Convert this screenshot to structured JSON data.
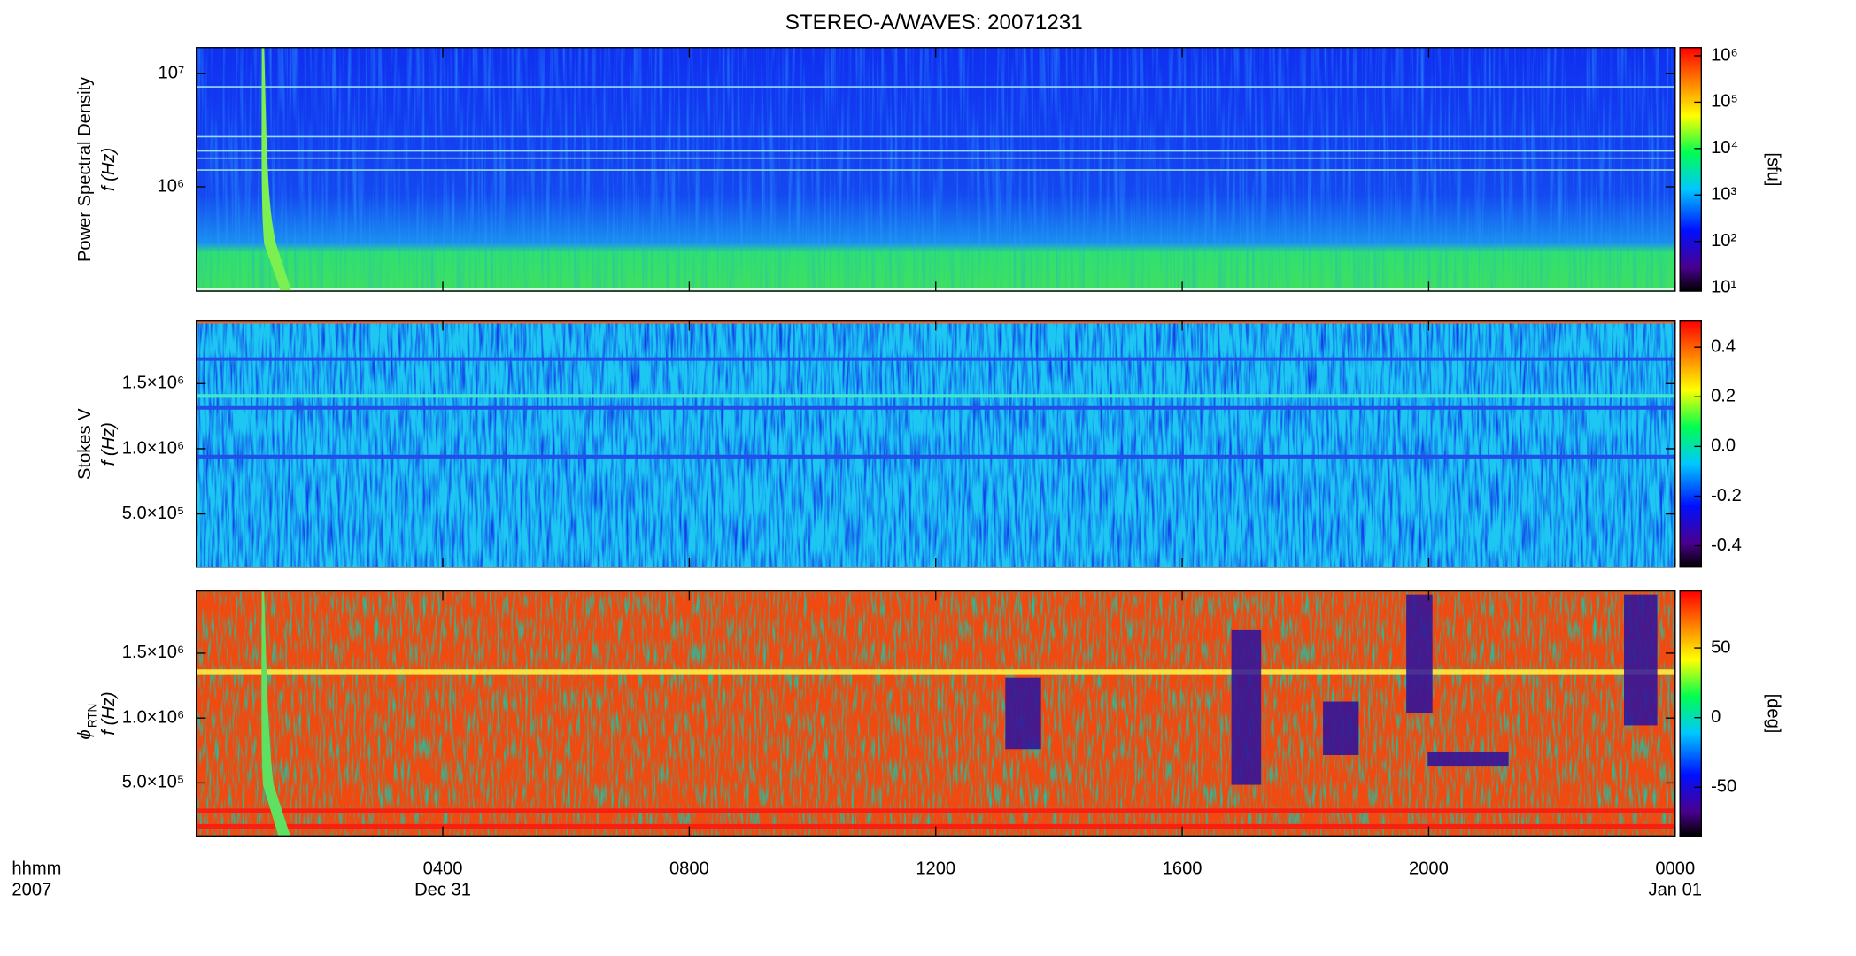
{
  "chart_data": [
    {
      "type": "heatmap",
      "title": "STEREO-A/WAVES: 20071231",
      "ylabel": [
        "Power Spectral Density",
        "f (Hz)"
      ],
      "ylog": true,
      "ylim": [
        119000,
        17000000
      ],
      "yticks": [
        {
          "value": 1000000,
          "label": "10⁶"
        },
        {
          "value": 10000000,
          "label": "10⁷"
        }
      ],
      "colorbar_log": true,
      "clim": [
        8.4,
        1500000
      ],
      "cticks": [
        {
          "value": 10,
          "label": "10¹"
        },
        {
          "value": 100,
          "label": "10²"
        },
        {
          "value": 1000,
          "label": "10³"
        },
        {
          "value": 10000,
          "label": "10⁴"
        },
        {
          "value": 100000,
          "label": "10⁵"
        },
        {
          "value": 1000000,
          "label": "10⁶"
        }
      ],
      "colorbar_label": "[sfu]"
    },
    {
      "type": "heatmap",
      "ylabel": [
        "Stokes V",
        "f (Hz)"
      ],
      "ylog": false,
      "ylim": [
        91000,
        1980000
      ],
      "yticks": [
        {
          "value": 500000,
          "label": "5.0×10⁵"
        },
        {
          "value": 1000000,
          "label": "1.0×10⁶"
        },
        {
          "value": 1500000,
          "label": "1.5×10⁶"
        }
      ],
      "colorbar_log": false,
      "clim": [
        -0.486,
        0.505
      ],
      "cticks": [
        -0.4,
        -0.2,
        {
          "value": 0,
          "label": "0.0"
        },
        0.2,
        0.4
      ]
    },
    {
      "type": "heatmap",
      "ylabel": [
        "ϕ",
        "RTN",
        "f (Hz)"
      ],
      "ylog": false,
      "ylim": [
        91000,
        1980000
      ],
      "yticks": [
        {
          "value": 500000,
          "label": "5.0×10⁵"
        },
        {
          "value": 1000000,
          "label": "1.0×10⁶"
        },
        {
          "value": 1500000,
          "label": "1.5×10⁶"
        }
      ],
      "colorbar_log": false,
      "clim": [
        -85,
        91
      ],
      "cticks": [
        -50,
        0,
        50
      ],
      "colorbar_label": "[deg]",
      "xlim": [
        0,
        24
      ],
      "xticks": [
        {
          "value": 4,
          "label": "0400"
        },
        {
          "value": 8,
          "label": "0800"
        },
        {
          "value": 12,
          "label": "1200"
        },
        {
          "value": 16,
          "label": "1600"
        },
        {
          "value": 20,
          "label": "2000"
        },
        {
          "value": 24,
          "label": "0000"
        }
      ],
      "xlabel": [
        "hhmm",
        "2007"
      ],
      "date_labels": [
        "Dec 31",
        "Jan 01"
      ]
    }
  ]
}
